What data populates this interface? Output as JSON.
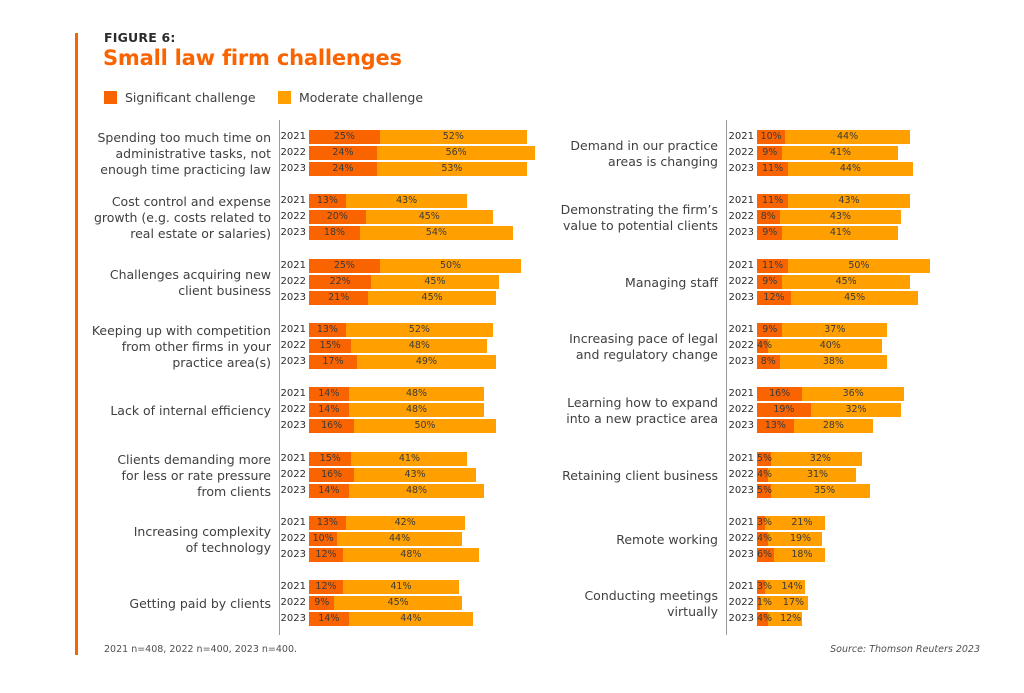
{
  "figure_label": "FIGURE 6:",
  "title": "Small law firm challenges",
  "footnote": "2021 n=408, 2022 n=400, 2023 n=400.",
  "source": "Source: Thomson Reuters 2023",
  "colors": {
    "significant": "#fa6400",
    "moderate": "#ffa000",
    "accent": "#fa6400"
  },
  "legend": [
    {
      "label": "Significant challenge",
      "color": "#fa6400"
    },
    {
      "label": "Moderate challenge",
      "color": "#ffa000"
    }
  ],
  "chart_data": {
    "type": "bar",
    "orientation": "horizontal",
    "stacked": true,
    "title": "Small law firm challenges",
    "subtitle": "FIGURE 6:",
    "xlabel": "",
    "ylabel": "",
    "unit": "%",
    "xlim": [
      0,
      100
    ],
    "grid": false,
    "legend_position": "top-left",
    "years": [
      "2021",
      "2022",
      "2023"
    ],
    "series_names": [
      "Significant challenge",
      "Moderate challenge"
    ],
    "panels": [
      {
        "name": "left",
        "categories": [
          {
            "label": [
              "Spending too much time on",
              "administrative tasks, not",
              "enough time practicing law"
            ],
            "significant": [
              25,
              24,
              24
            ],
            "moderate": [
              52,
              56,
              53
            ]
          },
          {
            "label": [
              "Cost control and expense",
              "growth (e.g. costs related to",
              "real estate or salaries)"
            ],
            "significant": [
              13,
              20,
              18
            ],
            "moderate": [
              43,
              45,
              54
            ]
          },
          {
            "label": [
              "Challenges acquiring new",
              "client business"
            ],
            "significant": [
              25,
              22,
              21
            ],
            "moderate": [
              50,
              45,
              45
            ]
          },
          {
            "label": [
              "Keeping up with competition",
              "from other firms in your",
              "practice area(s)"
            ],
            "significant": [
              13,
              15,
              17
            ],
            "moderate": [
              52,
              48,
              49
            ]
          },
          {
            "label": [
              "Lack of internal efficiency"
            ],
            "significant": [
              14,
              14,
              16
            ],
            "moderate": [
              48,
              48,
              50
            ]
          },
          {
            "label": [
              "Clients demanding more",
              "for less or rate pressure",
              "from clients"
            ],
            "significant": [
              15,
              16,
              14
            ],
            "moderate": [
              41,
              43,
              48
            ]
          },
          {
            "label": [
              "Increasing complexity",
              "of technology"
            ],
            "significant": [
              13,
              10,
              12
            ],
            "moderate": [
              42,
              44,
              48
            ]
          },
          {
            "label": [
              "Getting paid by clients"
            ],
            "significant": [
              12,
              9,
              14
            ],
            "moderate": [
              41,
              45,
              44
            ]
          }
        ]
      },
      {
        "name": "right",
        "categories": [
          {
            "label": [
              "Demand in our practice",
              "areas is changing"
            ],
            "significant": [
              10,
              9,
              11
            ],
            "moderate": [
              44,
              41,
              44
            ]
          },
          {
            "label": [
              "Demonstrating the firm’s",
              "value to potential clients"
            ],
            "significant": [
              11,
              8,
              9
            ],
            "moderate": [
              43,
              43,
              41
            ]
          },
          {
            "label": [
              "Managing staff"
            ],
            "significant": [
              11,
              9,
              12
            ],
            "moderate": [
              50,
              45,
              45
            ]
          },
          {
            "label": [
              "Increasing pace of legal",
              "and regulatory change"
            ],
            "significant": [
              9,
              4,
              8
            ],
            "moderate": [
              37,
              40,
              38
            ]
          },
          {
            "label": [
              "Learning how to expand",
              "into a new practice area"
            ],
            "significant": [
              16,
              19,
              13
            ],
            "moderate": [
              36,
              32,
              28
            ]
          },
          {
            "label": [
              "Retaining client business"
            ],
            "significant": [
              5,
              4,
              5
            ],
            "moderate": [
              32,
              31,
              35
            ]
          },
          {
            "label": [
              "Remote working"
            ],
            "significant": [
              3,
              4,
              6
            ],
            "moderate": [
              21,
              19,
              18
            ]
          },
          {
            "label": [
              "Conducting meetings",
              "virtually"
            ],
            "significant": [
              3,
              1,
              4
            ],
            "moderate": [
              14,
              17,
              12
            ]
          }
        ]
      }
    ]
  }
}
